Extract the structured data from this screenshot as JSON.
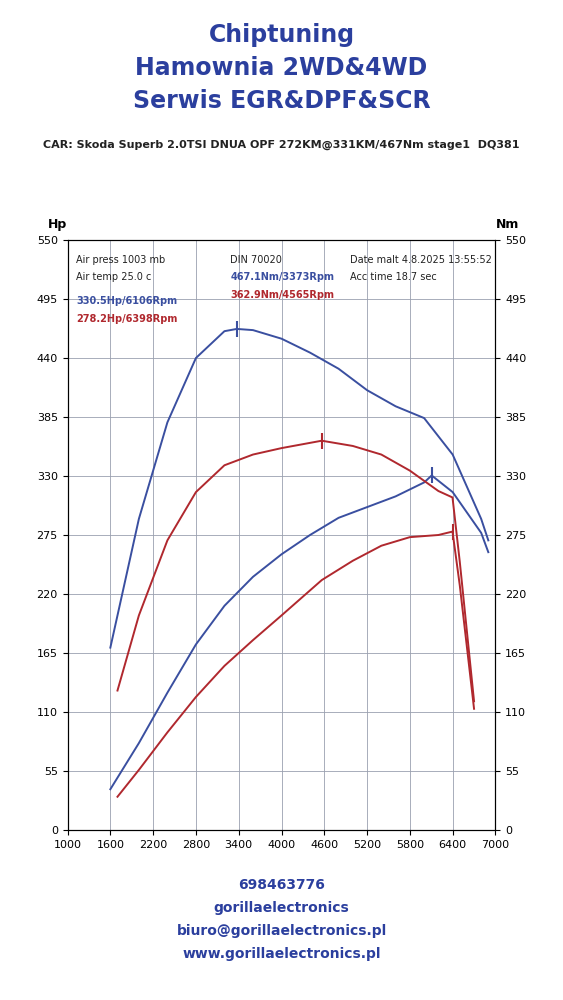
{
  "header": {
    "title": [
      "Chiptuning",
      "Hamownia 2WD&4WD",
      "Serwis EGR&DPF&SCR"
    ],
    "car": "CAR: Skoda Superb 2.0TSI DNUA OPF 272KM@331KM/467Nm stage1  DQ381",
    "contact": [
      "698463776",
      "gorillaelectronics",
      "biuro@gorillaelectronics.pl",
      "www.gorillaelectronics.pl"
    ],
    "color": "#2b3f9e"
  },
  "chart_data": {
    "type": "line",
    "y_label": "Hp",
    "y2_label": "Nm",
    "xlim": [
      1000,
      7000
    ],
    "xticks": [
      1000,
      1600,
      2200,
      2800,
      3400,
      4000,
      4600,
      5200,
      5800,
      6400,
      7000
    ],
    "ylim": [
      0,
      550
    ],
    "yticks": [
      0,
      55,
      110,
      165,
      220,
      275,
      330,
      385,
      440,
      495,
      550
    ],
    "y2lim": [
      0,
      550
    ],
    "y2ticks": [
      0,
      55,
      110,
      165,
      220,
      275,
      330,
      385,
      440,
      495,
      550
    ],
    "grid": true,
    "notes": [
      "Air press 1003 mb",
      "Air temp 25.0 c",
      "DIN 70020",
      "Date malt 4.8.2025 13:55:52",
      "Acc time 18.7 sec"
    ],
    "series": [
      {
        "color": "#3a4fa0",
        "axis": "y",
        "x": [
          1600,
          2000,
          2400,
          2800,
          3200,
          3600,
          4000,
          4400,
          4800,
          5200,
          5600,
          6000,
          6106,
          6400,
          6800,
          6900
        ],
        "values": [
          38,
          81,
          128,
          173,
          209,
          236,
          257,
          275,
          291,
          301,
          311,
          324,
          330.5,
          315,
          277,
          259
        ]
      },
      {
        "color": "#b0282e",
        "axis": "y",
        "x": [
          1700,
          2000,
          2400,
          2800,
          3200,
          3600,
          4000,
          4565,
          5000,
          5400,
          5800,
          6200,
          6398,
          6500,
          6700
        ],
        "values": [
          31,
          56,
          91,
          124,
          153,
          177,
          200,
          233,
          251,
          265,
          273,
          275,
          278.2,
          228,
          113
        ]
      },
      {
        "color": "#3a4fa0",
        "axis": "y2",
        "x": [
          1600,
          2000,
          2400,
          2800,
          3200,
          3373,
          3600,
          4000,
          4400,
          4800,
          5200,
          5600,
          6000,
          6400,
          6800,
          6900
        ],
        "values": [
          170,
          290,
          380,
          440,
          465,
          467.1,
          466,
          458,
          445,
          430,
          410,
          395,
          384,
          350,
          290,
          270
        ]
      },
      {
        "color": "#b0282e",
        "axis": "y2",
        "x": [
          1700,
          2000,
          2400,
          2800,
          3200,
          3600,
          4000,
          4565,
          5000,
          5400,
          5800,
          6200,
          6398,
          6500,
          6700
        ],
        "values": [
          130,
          200,
          270,
          315,
          340,
          350,
          356,
          362.9,
          358,
          350,
          335,
          316,
          310,
          250,
          120
        ]
      }
    ],
    "annotations": [
      {
        "text": "330.5Hp/6106Rpm",
        "x": 6106,
        "y": 330.5,
        "axis": "y",
        "color": "#3a4fa0"
      },
      {
        "text": "278.2Hp/6398Rpm",
        "x": 6398,
        "y": 278.2,
        "axis": "y",
        "color": "#b0282e"
      },
      {
        "text": "467.1Nm/3373Rpm",
        "x": 3373,
        "y": 467.1,
        "axis": "y2",
        "color": "#3a4fa0"
      },
      {
        "text": "362.9Nm/4565Rpm",
        "x": 4565,
        "y": 362.9,
        "axis": "y2",
        "color": "#b0282e"
      }
    ]
  }
}
